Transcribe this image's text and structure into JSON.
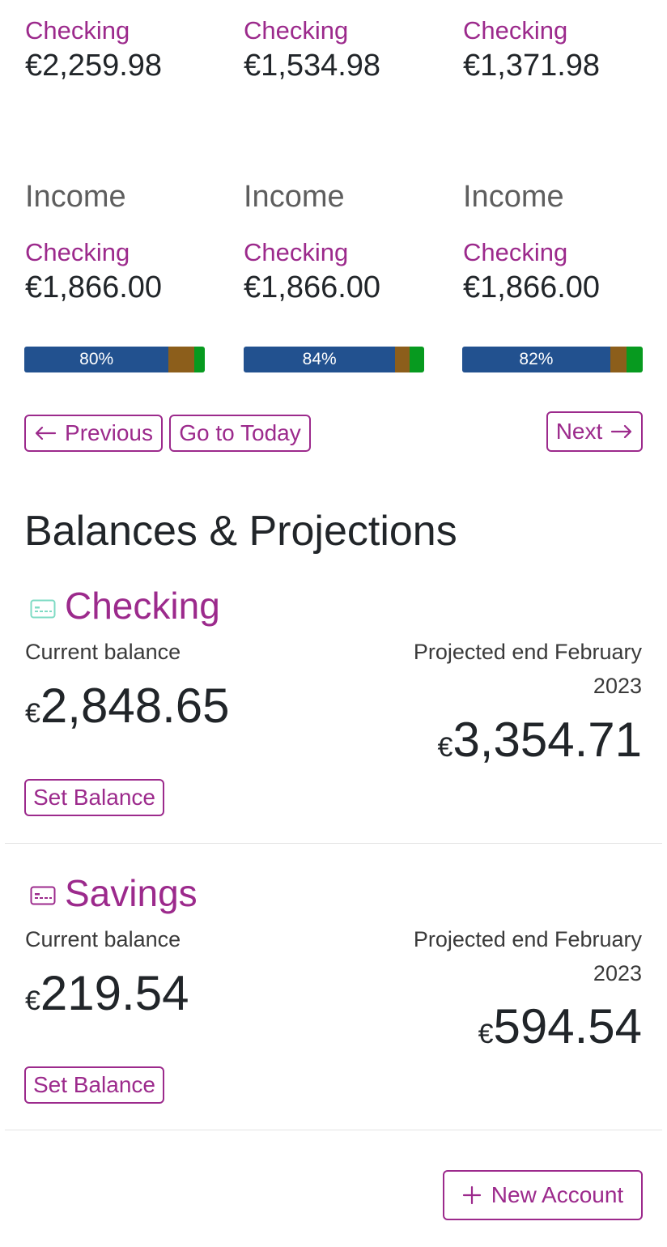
{
  "periods": [
    {
      "top_account": "Checking",
      "top_amount": "€2,259.98",
      "income_title": "Income",
      "income_account": "Checking",
      "income_amount": "€1,866.00",
      "progress": {
        "label": "80%",
        "segments": [
          0.8,
          0.14,
          0.06
        ]
      }
    },
    {
      "top_account": "Checking",
      "top_amount": "€1,534.98",
      "income_title": "Income",
      "income_account": "Checking",
      "income_amount": "€1,866.00",
      "progress": {
        "label": "84%",
        "segments": [
          0.84,
          0.08,
          0.08
        ]
      }
    },
    {
      "top_account": "Checking",
      "top_amount": "€1,371.98",
      "income_title": "Income",
      "income_account": "Checking",
      "income_amount": "€1,866.00",
      "progress": {
        "label": "82%",
        "segments": [
          0.82,
          0.09,
          0.09
        ]
      }
    }
  ],
  "progress_colors": [
    "#22518f",
    "#8c5e1b",
    "#079a1f"
  ],
  "nav": {
    "previous_label": "Previous",
    "today_label": "Go to Today",
    "next_label": "Next"
  },
  "balances": {
    "title": "Balances & Projections",
    "accounts": [
      {
        "name": "Checking",
        "icon": "credit-card-icon",
        "icon_color": "#7fdbc4",
        "current_label": "Current balance",
        "current_currency": "€",
        "current_amount": "2,848.65",
        "projected_label": "Projected end February 2023",
        "projected_currency": "€",
        "projected_amount": "3,354.71",
        "set_balance_label": "Set Balance"
      },
      {
        "name": "Savings",
        "icon": "credit-card-icon",
        "icon_color": "#9c2a8c",
        "current_label": "Current balance",
        "current_currency": "€",
        "current_amount": "219.54",
        "projected_label": "Projected end February 2023",
        "projected_currency": "€",
        "projected_amount": "594.54",
        "set_balance_label": "Set Balance"
      }
    ],
    "new_account_label": "New Account"
  },
  "colors": {
    "accent": "#9c2a8c",
    "text": "#212529"
  }
}
